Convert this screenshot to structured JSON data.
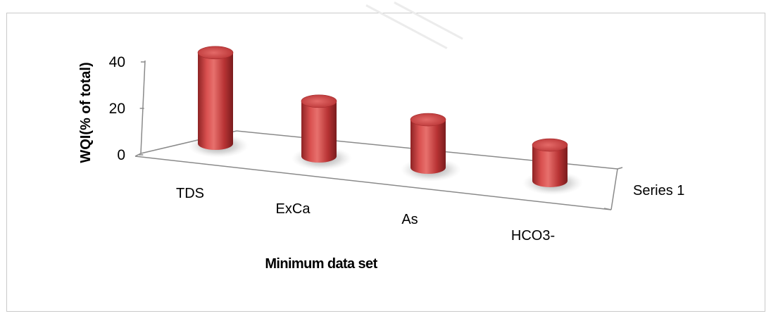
{
  "chart_data": {
    "type": "bar",
    "style": "3d-cylinder",
    "categories": [
      "TDS",
      "ExCa",
      "As",
      "HCO3-"
    ],
    "series": [
      {
        "name": "Series 1",
        "values": [
          38,
          23,
          20,
          15
        ]
      }
    ],
    "xlabel": "Minimum data set",
    "ylabel": "WQI(% of total)",
    "yticks": [
      "0",
      "20",
      "40"
    ],
    "ylim": [
      0,
      40
    ],
    "grid": false,
    "legend": "none",
    "colors": {
      "bar_main": "#c0393b",
      "bar_light": "#e06a68",
      "bar_dark": "#7e1e1f",
      "axis": "#8a8a8a"
    }
  }
}
